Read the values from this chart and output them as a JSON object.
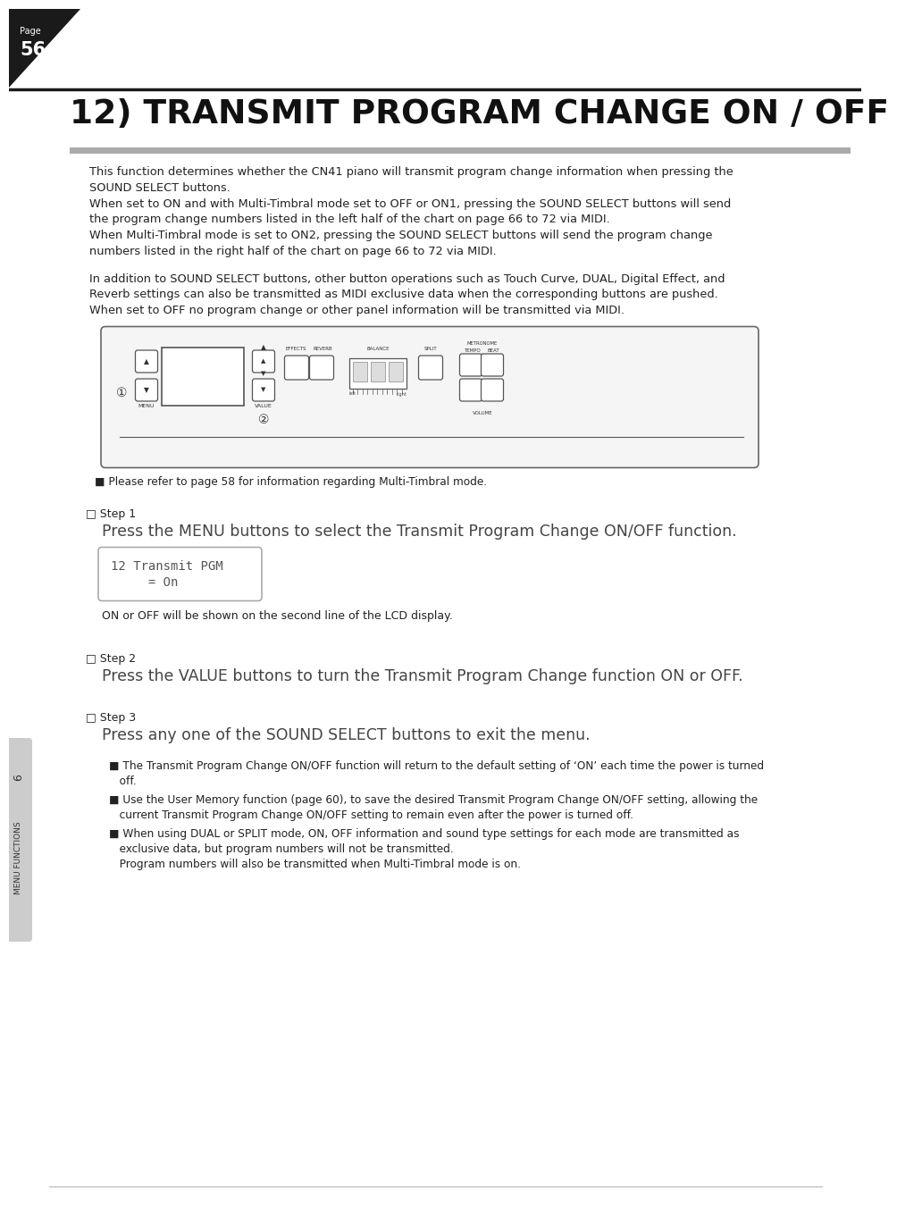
{
  "page_number": "56",
  "page_label": "Page",
  "tab_label": "6",
  "tab_text": "MENU FUNCTIONS",
  "title": "12) TRANSMIT PROGRAM CHANGE ON / OFF",
  "bg_color": "#ffffff",
  "title_color": "#000000",
  "text_color": "#222222",
  "sidebar_bg": "#cccccc",
  "body_lines": [
    "This function determines whether the CN41 piano will transmit program change information when pressing the",
    "SOUND SELECT buttons.",
    "When set to ON and with Multi-Timbral mode set to OFF or ON1, pressing the SOUND SELECT buttons will send",
    "the program change numbers listed in the left half of the chart on page 66 to 72 via MIDI.",
    "When Multi-Timbral mode is set to ON2, pressing the SOUND SELECT buttons will send the program change",
    "numbers listed in the right half of the chart on page 66 to 72 via MIDI."
  ],
  "body_lines2": [
    "In addition to SOUND SELECT buttons, other button operations such as Touch Curve, DUAL, Digital Effect, and",
    "Reverb settings can also be transmitted as MIDI exclusive data when the corresponding buttons are pushed.",
    "When set to OFF no program change or other panel information will be transmitted via MIDI."
  ],
  "note1": "■ Please refer to page 58 for information regarding Multi-Timbral mode.",
  "step1_label": "□ Step 1",
  "step1_text": "Press the MENU buttons to select the Transmit Program Change ON/OFF function.",
  "lcd_line1": "12 Transmit PGM",
  "lcd_line2": "     = On",
  "lcd_note": "ON or OFF will be shown on the second line of the LCD display.",
  "step2_label": "□ Step 2",
  "step2_text": "Press the VALUE buttons to turn the Transmit Program Change function ON or OFF.",
  "step3_label": "□ Step 3",
  "step3_text": "Press any one of the SOUND SELECT buttons to exit the menu.",
  "bullet1a": "■ The Transmit Program Change ON/OFF function will return to the default setting of ‘ON’ each time the power is turned",
  "bullet1b": "   off.",
  "bullet2a": "■ Use the User Memory function (page 60), to save the desired Transmit Program Change ON/OFF setting, allowing the",
  "bullet2b": "   current Transmit Program Change ON/OFF setting to remain even after the power is turned off.",
  "bullet3a": "■ When using DUAL or SPLIT mode, ON, OFF information and sound type settings for each mode are transmitted as",
  "bullet3b": "   exclusive data, but program numbers will not be transmitted.",
  "bullet3c": "   Program numbers will also be transmitted when Multi-Timbral mode is on."
}
